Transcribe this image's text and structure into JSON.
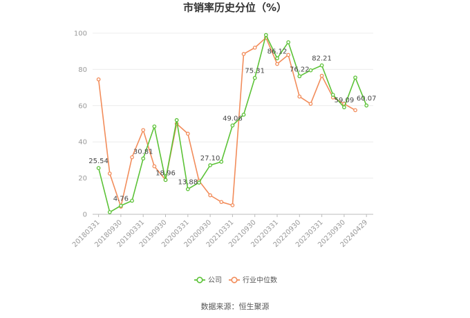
{
  "chart_data": {
    "type": "line",
    "title": "市销率历史分位（%）",
    "ylim": [
      0,
      100
    ],
    "yticks": [
      0,
      20,
      40,
      60,
      80,
      100
    ],
    "grid": true,
    "legend_position": "bottom",
    "x_tick_labels": [
      "20180331",
      "20180930",
      "20190331",
      "20190930",
      "20200331",
      "20200930",
      "20210331",
      "20210930",
      "20220331",
      "20220930",
      "20230331",
      "20230930",
      "20240429"
    ],
    "x": [
      "20180331",
      "20180630",
      "20180930",
      "20181231",
      "20190331",
      "20190630",
      "20190930",
      "20191231",
      "20200331",
      "20200630",
      "20200930",
      "20201231",
      "20210331",
      "20210630",
      "20210930",
      "20211231",
      "20220331",
      "20220630",
      "20220930",
      "20221231",
      "20230331",
      "20230630",
      "20230930",
      "20231231",
      "20240429"
    ],
    "series": [
      {
        "name": "公司",
        "color": "#5bc236",
        "values": [
          25.54,
          1.2,
          4.76,
          7.5,
          30.81,
          48.5,
          18.96,
          52.0,
          13.88,
          17.5,
          27.1,
          29.0,
          49.06,
          55.0,
          75.31,
          99.0,
          86.12,
          95.0,
          76.22,
          79.5,
          82.21,
          66.0,
          59.09,
          75.5,
          60.07
        ]
      },
      {
        "name": "行业中位数",
        "color": "#f28c5a",
        "values": [
          74.5,
          22.5,
          4.2,
          31.5,
          46.5,
          26.5,
          19.0,
          50.0,
          44.5,
          18.5,
          10.5,
          6.8,
          5.0,
          88.5,
          92.0,
          97.5,
          83.0,
          88.0,
          65.0,
          61.0,
          76.5,
          64.5,
          61.0,
          57.5,
          null
        ]
      }
    ],
    "data_labels": [
      {
        "series": 0,
        "index": 0,
        "text": "25.54"
      },
      {
        "series": 0,
        "index": 2,
        "text": "4.76"
      },
      {
        "series": 0,
        "index": 4,
        "text": "30.81"
      },
      {
        "series": 0,
        "index": 6,
        "text": "18.96"
      },
      {
        "series": 0,
        "index": 8,
        "text": "13.88"
      },
      {
        "series": 0,
        "index": 10,
        "text": "27.10"
      },
      {
        "series": 0,
        "index": 12,
        "text": "49.06"
      },
      {
        "series": 0,
        "index": 14,
        "text": "75.31"
      },
      {
        "series": 0,
        "index": 16,
        "text": "86.12"
      },
      {
        "series": 0,
        "index": 18,
        "text": "76.22"
      },
      {
        "series": 0,
        "index": 20,
        "text": "82.21"
      },
      {
        "series": 0,
        "index": 22,
        "text": "59.09"
      },
      {
        "series": 0,
        "index": 24,
        "text": "60.07"
      }
    ]
  },
  "legend": {
    "items": [
      {
        "label": "公司",
        "color": "#5bc236"
      },
      {
        "label": "行业中位数",
        "color": "#f28c5a"
      }
    ]
  },
  "footer": {
    "source_text": "数据来源：恒生聚源"
  }
}
